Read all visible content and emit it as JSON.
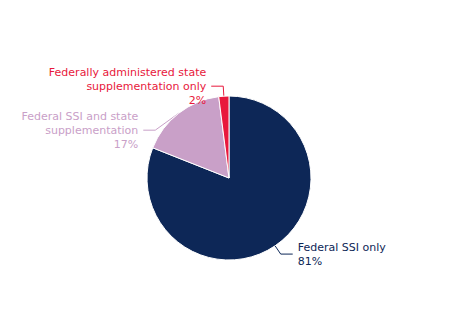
{
  "chart_data": {
    "type": "pie",
    "categories": [
      "Federal SSI only",
      "Federal SSI and state\nsupplementation",
      "Federally administered state\nsupplementation only"
    ],
    "values": [
      81,
      17,
      2
    ],
    "value_labels": [
      "81%",
      "17%",
      "2%"
    ],
    "data_labels": true,
    "colors": [
      "#0d2757",
      "#c9a0c8",
      "#e8183c"
    ]
  }
}
